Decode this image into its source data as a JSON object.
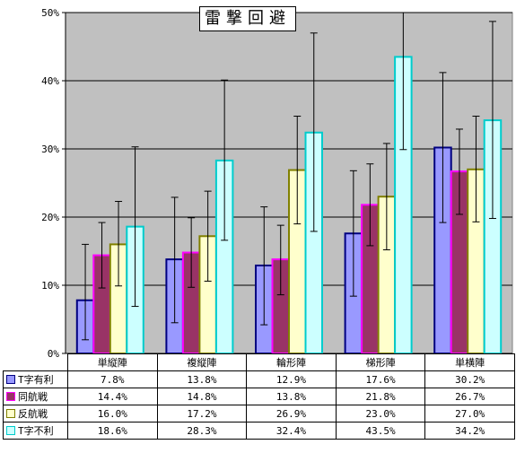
{
  "chart_data": {
    "type": "bar",
    "title": "雷撃回避",
    "categories": [
      "単縦陣",
      "複縦陣",
      "輪形陣",
      "梯形陣",
      "単横陣"
    ],
    "ylim": [
      0,
      50
    ],
    "yticks": [
      "0%",
      "10%",
      "20%",
      "30%",
      "40%",
      "50%"
    ],
    "grid": true,
    "error_bars": true,
    "series": [
      {
        "name": "T字有利",
        "color": "#9999ff",
        "border": "#000080",
        "values": [
          7.8,
          13.8,
          12.9,
          17.6,
          30.2
        ],
        "labels": [
          "7.8%",
          "13.8%",
          "12.9%",
          "17.6%",
          "30.2%"
        ],
        "error_low": [
          2.0,
          4.5,
          4.2,
          8.4,
          19.2
        ],
        "error_high": [
          16.0,
          22.9,
          21.5,
          26.8,
          41.2
        ]
      },
      {
        "name": "同航戦",
        "color": "#993366",
        "border": "#ff00ff",
        "values": [
          14.4,
          14.8,
          13.8,
          21.8,
          26.7
        ],
        "labels": [
          "14.4%",
          "14.8%",
          "13.8%",
          "21.8%",
          "26.7%"
        ],
        "error_low": [
          9.6,
          9.7,
          8.6,
          15.8,
          20.4
        ],
        "error_high": [
          19.2,
          19.9,
          18.8,
          27.8,
          32.9
        ]
      },
      {
        "name": "反航戦",
        "color": "#ffffcc",
        "border": "#808000",
        "values": [
          16.0,
          17.2,
          26.9,
          23.0,
          27.0
        ],
        "labels": [
          "16.0%",
          "17.2%",
          "26.9%",
          "23.0%",
          "27.0%"
        ],
        "error_low": [
          9.9,
          10.6,
          19.0,
          15.2,
          19.3
        ],
        "error_high": [
          22.3,
          23.8,
          34.8,
          30.8,
          34.8
        ]
      },
      {
        "name": "T字不利",
        "color": "#ccffff",
        "border": "#00cccc",
        "values": [
          18.6,
          28.3,
          32.4,
          43.5,
          34.2
        ],
        "labels": [
          "18.6%",
          "28.3%",
          "32.4%",
          "43.5%",
          "34.2%"
        ],
        "error_low": [
          6.9,
          16.6,
          17.9,
          29.9,
          19.8
        ],
        "error_high": [
          30.3,
          40.1,
          47.0,
          50.0,
          48.7
        ]
      }
    ]
  }
}
